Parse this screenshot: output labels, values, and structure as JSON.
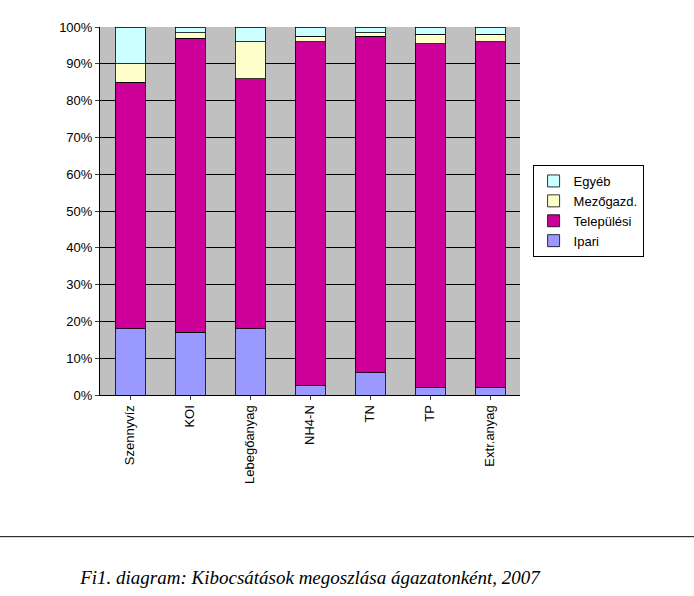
{
  "chart_data": {
    "type": "bar",
    "title": "Fi1. diagram: Kibocsátások megoszlása ágazatonként, 2007",
    "stacked": true,
    "grid": true,
    "legend": "right",
    "categories": [
      "Szennyvíz",
      "KOI",
      "Lebegőanyag",
      "NH4-N",
      "TN",
      "TP",
      "Extr.anyag"
    ],
    "series": [
      {
        "name": "Ipari",
        "color": "#9999ff",
        "values": [
          18,
          17,
          18,
          2.5,
          6,
          2,
          2
        ]
      },
      {
        "name": "Települési",
        "color": "#cc0099",
        "values": [
          67,
          80,
          68,
          93.5,
          91.5,
          93.5,
          94
        ]
      },
      {
        "name": "Mezőgazd.",
        "color": "#ffffcc",
        "values": [
          5,
          1.5,
          10,
          1.5,
          1,
          2.5,
          2
        ]
      },
      {
        "name": "Egyéb",
        "color": "#ccffff",
        "values": [
          10,
          1.5,
          4,
          2.5,
          1.5,
          2,
          2
        ]
      }
    ],
    "ylim": [
      0,
      100
    ],
    "yticks": [
      {
        "value": 0,
        "label": "0%"
      },
      {
        "value": 10,
        "label": "10%"
      },
      {
        "value": 20,
        "label": "20%"
      },
      {
        "value": 30,
        "label": "30%"
      },
      {
        "value": 40,
        "label": "40%"
      },
      {
        "value": 50,
        "label": "50%"
      },
      {
        "value": 60,
        "label": "60%"
      },
      {
        "value": 70,
        "label": "70%"
      },
      {
        "value": 80,
        "label": "80%"
      },
      {
        "value": 90,
        "label": "90%"
      },
      {
        "value": 100,
        "label": "100%"
      }
    ]
  }
}
